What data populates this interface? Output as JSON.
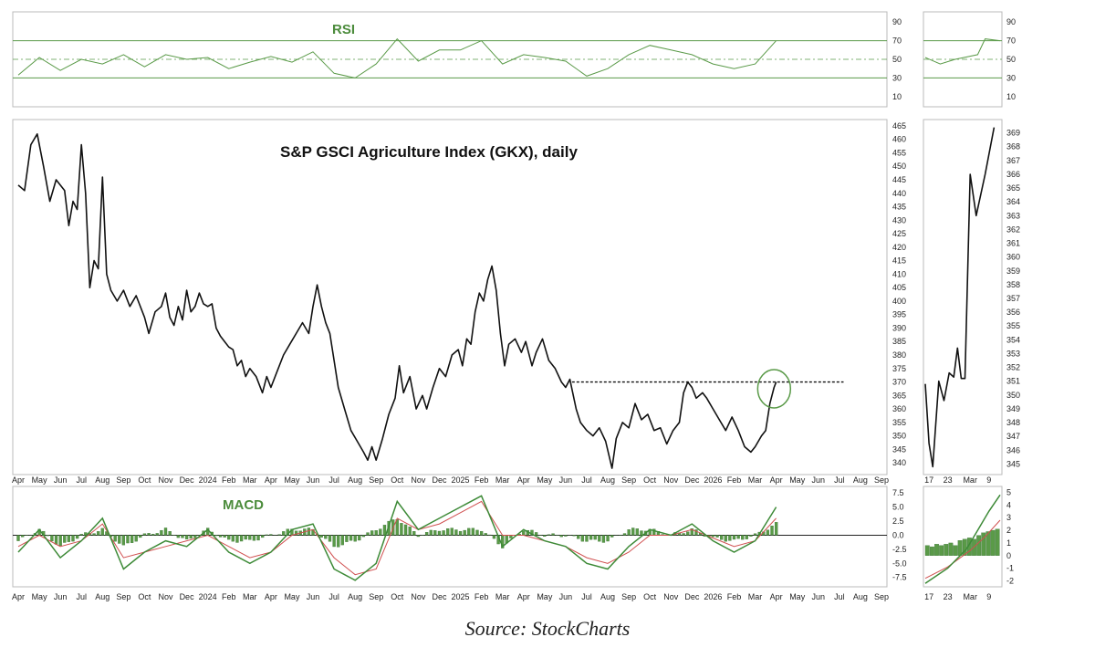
{
  "chart_data": {
    "type": "line",
    "title": "S&P GSCI Agriculture Index (GKX), daily",
    "source": "Source: StockCharts",
    "colors": {
      "price": "#111111",
      "rsi": "#5a9a48",
      "macd": "#3d8a37",
      "signal": "#d05050",
      "hist": "#5a9a48"
    },
    "main": {
      "x_labels": [
        "Apr",
        "May",
        "Jun",
        "Jul",
        "Aug",
        "Sep",
        "Oct",
        "Nov",
        "Dec",
        "2024",
        "Feb",
        "Mar",
        "Apr",
        "May",
        "Jun",
        "Jul",
        "Aug",
        "Sep",
        "Oct",
        "Nov",
        "Dec",
        "2025",
        "Feb",
        "Mar",
        "Apr",
        "May",
        "Jun",
        "Jul",
        "Aug",
        "Sep",
        "Oct",
        "Nov",
        "Dec",
        "2026",
        "Feb",
        "Mar",
        "Apr",
        "May",
        "Jun",
        "Jul",
        "Aug",
        "Sep"
      ],
      "y_ticks": [
        340,
        345,
        350,
        355,
        360,
        365,
        370,
        375,
        380,
        385,
        390,
        395,
        400,
        405,
        410,
        415,
        420,
        425,
        430,
        435,
        440,
        445,
        450,
        455,
        460,
        465
      ],
      "ylim": [
        336,
        467
      ],
      "points": [
        [
          0,
          443
        ],
        [
          0.3,
          441
        ],
        [
          0.6,
          458
        ],
        [
          0.9,
          462
        ],
        [
          1.2,
          450
        ],
        [
          1.5,
          437
        ],
        [
          1.8,
          445
        ],
        [
          2.2,
          441
        ],
        [
          2.4,
          428
        ],
        [
          2.6,
          437
        ],
        [
          2.8,
          434
        ],
        [
          3.0,
          458
        ],
        [
          3.2,
          440
        ],
        [
          3.4,
          405
        ],
        [
          3.6,
          415
        ],
        [
          3.8,
          412
        ],
        [
          4.0,
          446
        ],
        [
          4.2,
          410
        ],
        [
          4.4,
          404
        ],
        [
          4.7,
          400
        ],
        [
          5,
          404
        ],
        [
          5.3,
          398
        ],
        [
          5.6,
          402
        ],
        [
          6,
          394
        ],
        [
          6.2,
          388
        ],
        [
          6.5,
          396
        ],
        [
          6.8,
          398
        ],
        [
          7.0,
          403
        ],
        [
          7.2,
          394
        ],
        [
          7.4,
          391
        ],
        [
          7.6,
          398
        ],
        [
          7.8,
          393
        ],
        [
          8.0,
          404
        ],
        [
          8.2,
          396
        ],
        [
          8.4,
          398
        ],
        [
          8.6,
          403
        ],
        [
          8.8,
          399
        ],
        [
          9.0,
          398
        ],
        [
          9.2,
          399
        ],
        [
          9.4,
          390
        ],
        [
          9.6,
          387
        ],
        [
          9.8,
          385
        ],
        [
          10.0,
          383
        ],
        [
          10.2,
          382
        ],
        [
          10.4,
          376
        ],
        [
          10.6,
          378
        ],
        [
          10.8,
          372
        ],
        [
          11,
          375
        ],
        [
          11.3,
          372
        ],
        [
          11.6,
          366
        ],
        [
          11.8,
          372
        ],
        [
          12,
          368
        ],
        [
          12.3,
          374
        ],
        [
          12.6,
          380
        ],
        [
          12.9,
          384
        ],
        [
          13.2,
          388
        ],
        [
          13.5,
          392
        ],
        [
          13.8,
          388
        ],
        [
          14.0,
          398
        ],
        [
          14.2,
          406
        ],
        [
          14.4,
          398
        ],
        [
          14.6,
          392
        ],
        [
          14.8,
          388
        ],
        [
          15.0,
          378
        ],
        [
          15.2,
          368
        ],
        [
          15.5,
          360
        ],
        [
          15.8,
          352
        ],
        [
          16.1,
          348
        ],
        [
          16.4,
          344
        ],
        [
          16.6,
          341
        ],
        [
          16.8,
          346
        ],
        [
          17.0,
          341
        ],
        [
          17.3,
          349
        ],
        [
          17.6,
          358
        ],
        [
          17.9,
          364
        ],
        [
          18.1,
          376
        ],
        [
          18.3,
          366
        ],
        [
          18.6,
          372
        ],
        [
          18.9,
          360
        ],
        [
          19.2,
          365
        ],
        [
          19.4,
          360
        ],
        [
          19.7,
          368
        ],
        [
          20.0,
          375
        ],
        [
          20.3,
          372
        ],
        [
          20.6,
          380
        ],
        [
          20.9,
          382
        ],
        [
          21.1,
          376
        ],
        [
          21.3,
          386
        ],
        [
          21.5,
          384
        ],
        [
          21.7,
          396
        ],
        [
          21.9,
          403
        ],
        [
          22.1,
          400
        ],
        [
          22.3,
          408
        ],
        [
          22.5,
          413
        ],
        [
          22.7,
          404
        ],
        [
          22.9,
          388
        ],
        [
          23.1,
          376
        ],
        [
          23.3,
          384
        ],
        [
          23.6,
          386
        ],
        [
          23.9,
          381
        ],
        [
          24.1,
          385
        ],
        [
          24.4,
          376
        ],
        [
          24.6,
          381
        ],
        [
          24.9,
          386
        ],
        [
          25.2,
          378
        ],
        [
          25.5,
          375
        ],
        [
          25.8,
          370
        ],
        [
          26.0,
          368
        ],
        [
          26.2,
          371
        ],
        [
          26.5,
          360
        ],
        [
          26.7,
          355
        ],
        [
          27.0,
          352
        ],
        [
          27.3,
          350
        ],
        [
          27.6,
          353
        ],
        [
          27.9,
          348
        ],
        [
          28.2,
          338
        ],
        [
          28.4,
          349
        ],
        [
          28.7,
          355
        ],
        [
          29.0,
          353
        ],
        [
          29.3,
          362
        ],
        [
          29.6,
          356
        ],
        [
          29.9,
          358
        ],
        [
          30.2,
          352
        ],
        [
          30.5,
          353
        ],
        [
          30.8,
          347
        ],
        [
          31.1,
          352
        ],
        [
          31.4,
          355
        ],
        [
          31.6,
          366
        ],
        [
          31.8,
          370
        ],
        [
          32.0,
          368
        ],
        [
          32.2,
          364
        ],
        [
          32.5,
          366
        ],
        [
          32.7,
          364
        ],
        [
          33.0,
          360
        ],
        [
          33.3,
          356
        ],
        [
          33.6,
          352
        ],
        [
          33.9,
          357
        ],
        [
          34.2,
          352
        ],
        [
          34.5,
          346
        ],
        [
          34.8,
          344
        ],
        [
          35.0,
          346
        ],
        [
          35.3,
          350
        ],
        [
          35.5,
          352
        ],
        [
          35.7,
          362
        ],
        [
          35.9,
          368
        ],
        [
          36.0,
          370
        ]
      ],
      "resistance": {
        "value": 370,
        "x_start": 26.3,
        "x_end": 39.2
      },
      "highlight": {
        "x": 35.9,
        "y": 367.5
      }
    },
    "rsi": {
      "title": "RSI",
      "y_ticks": [
        10,
        30,
        50,
        70,
        90
      ],
      "ylim": [
        0,
        100
      ],
      "levels": [
        30,
        50,
        70
      ],
      "points": [
        [
          0,
          33
        ],
        [
          1,
          52
        ],
        [
          2,
          38
        ],
        [
          3,
          50
        ],
        [
          4,
          45
        ],
        [
          5,
          55
        ],
        [
          6,
          42
        ],
        [
          7,
          55
        ],
        [
          8,
          50
        ],
        [
          9,
          52
        ],
        [
          10,
          40
        ],
        [
          11,
          47
        ],
        [
          12,
          53
        ],
        [
          13,
          47
        ],
        [
          14,
          58
        ],
        [
          15,
          35
        ],
        [
          16,
          30
        ],
        [
          17,
          45
        ],
        [
          18,
          72
        ],
        [
          19,
          48
        ],
        [
          20,
          60
        ],
        [
          21,
          60
        ],
        [
          22,
          70
        ],
        [
          23,
          45
        ],
        [
          24,
          55
        ],
        [
          25,
          52
        ],
        [
          26,
          48
        ],
        [
          27,
          32
        ],
        [
          28,
          40
        ],
        [
          29,
          55
        ],
        [
          30,
          65
        ],
        [
          31,
          60
        ],
        [
          32,
          55
        ],
        [
          33,
          45
        ],
        [
          34,
          40
        ],
        [
          35,
          45
        ],
        [
          36,
          70
        ]
      ]
    },
    "rsi_zoom": {
      "y_ticks": [
        10,
        30,
        50,
        70,
        90
      ],
      "points": [
        [
          0,
          52
        ],
        [
          0.2,
          45
        ],
        [
          0.4,
          50
        ],
        [
          0.7,
          55
        ],
        [
          0.8,
          72
        ],
        [
          1.0,
          70
        ]
      ]
    },
    "main_zoom": {
      "x_labels": [
        "17",
        "23",
        "Mar",
        "9"
      ],
      "y_ticks": [
        345,
        346,
        347,
        348,
        349,
        350,
        351,
        352,
        353,
        354,
        355,
        356,
        357,
        358,
        359,
        360,
        361,
        362,
        363,
        364,
        365,
        366,
        367,
        368,
        369
      ],
      "ylim": [
        344.3,
        369.9
      ],
      "points": [
        [
          0,
          350.8
        ],
        [
          0.05,
          346.5
        ],
        [
          0.1,
          344.8
        ],
        [
          0.18,
          351
        ],
        [
          0.25,
          349.6
        ],
        [
          0.32,
          351.6
        ],
        [
          0.38,
          351.3
        ],
        [
          0.43,
          353.4
        ],
        [
          0.48,
          351.2
        ],
        [
          0.53,
          351.2
        ],
        [
          0.6,
          366
        ],
        [
          0.68,
          363
        ],
        [
          0.8,
          366
        ],
        [
          0.92,
          369.4
        ]
      ]
    },
    "macd": {
      "title": "MACD",
      "y_ticks": [
        -7.5,
        -5.0,
        -2.5,
        0.0,
        2.5,
        5.0,
        7.5
      ],
      "ylim": [
        -9,
        8.5
      ],
      "x_labels": [
        "Apr",
        "May",
        "Jun",
        "Jul",
        "Aug",
        "Sep",
        "Oct",
        "Nov",
        "Dec",
        "2024",
        "Feb",
        "Mar",
        "Apr",
        "May",
        "Jun",
        "Jul",
        "Aug",
        "Sep",
        "Oct",
        "Nov",
        "Dec",
        "2025",
        "Feb",
        "Mar",
        "Apr",
        "May",
        "Jun",
        "Jul",
        "Aug",
        "Sep",
        "Oct",
        "Nov",
        "Dec",
        "2026",
        "Feb",
        "Mar",
        "Apr",
        "May",
        "Jun",
        "Jul",
        "Aug",
        "Sep"
      ],
      "macd_points": [
        [
          0,
          -3
        ],
        [
          1,
          1
        ],
        [
          2,
          -4
        ],
        [
          3,
          -1
        ],
        [
          4,
          3
        ],
        [
          5,
          -6
        ],
        [
          6,
          -3
        ],
        [
          7,
          -1
        ],
        [
          8,
          -2
        ],
        [
          9,
          1
        ],
        [
          10,
          -3
        ],
        [
          11,
          -5
        ],
        [
          12,
          -3
        ],
        [
          13,
          1
        ],
        [
          14,
          2
        ],
        [
          15,
          -6
        ],
        [
          16,
          -8
        ],
        [
          17,
          -5
        ],
        [
          18,
          6
        ],
        [
          19,
          1
        ],
        [
          20,
          3
        ],
        [
          21,
          5
        ],
        [
          22,
          7
        ],
        [
          23,
          -2
        ],
        [
          24,
          1
        ],
        [
          25,
          -1
        ],
        [
          26,
          -2
        ],
        [
          27,
          -5
        ],
        [
          28,
          -6
        ],
        [
          29,
          -2
        ],
        [
          30,
          1
        ],
        [
          31,
          0
        ],
        [
          32,
          2
        ],
        [
          33,
          -1
        ],
        [
          34,
          -3
        ],
        [
          35,
          -1
        ],
        [
          36,
          5
        ]
      ],
      "signal_points": [
        [
          0,
          -2
        ],
        [
          1,
          0
        ],
        [
          2,
          -2
        ],
        [
          3,
          -1
        ],
        [
          4,
          2
        ],
        [
          5,
          -4
        ],
        [
          6,
          -3
        ],
        [
          7,
          -2
        ],
        [
          8,
          -1
        ],
        [
          9,
          0
        ],
        [
          10,
          -2
        ],
        [
          11,
          -4
        ],
        [
          12,
          -3
        ],
        [
          13,
          0
        ],
        [
          14,
          1
        ],
        [
          15,
          -4
        ],
        [
          16,
          -7
        ],
        [
          17,
          -6
        ],
        [
          18,
          3
        ],
        [
          19,
          1
        ],
        [
          20,
          2
        ],
        [
          21,
          4
        ],
        [
          22,
          6
        ],
        [
          23,
          0
        ],
        [
          24,
          0
        ],
        [
          25,
          -1
        ],
        [
          26,
          -2
        ],
        [
          27,
          -4
        ],
        [
          28,
          -5
        ],
        [
          29,
          -3
        ],
        [
          30,
          0
        ],
        [
          31,
          0
        ],
        [
          32,
          1
        ],
        [
          33,
          -0.5
        ],
        [
          34,
          -2
        ],
        [
          35,
          -1
        ],
        [
          36,
          3
        ]
      ],
      "hist_values": [
        -1,
        1,
        -2,
        0,
        1,
        -2,
        0,
        1,
        -1,
        1,
        -1,
        -1,
        0,
        1,
        1,
        -2,
        -1,
        1,
        3,
        0,
        1,
        1,
        1,
        -2,
        1,
        0,
        0,
        -1,
        -1,
        1,
        1,
        0,
        1,
        -0.5,
        -1,
        0,
        2
      ]
    },
    "macd_zoom": {
      "x_labels": [
        "17",
        "23",
        "Mar",
        "9"
      ],
      "y_ticks": [
        -2,
        -1,
        0,
        1,
        2,
        3,
        4,
        5
      ],
      "ylim": [
        -2.4,
        5.4
      ],
      "macd_points": [
        [
          0,
          -2.2
        ],
        [
          0.3,
          -1
        ],
        [
          0.55,
          0.5
        ],
        [
          0.7,
          2
        ],
        [
          0.85,
          3.5
        ],
        [
          1,
          4.8
        ]
      ],
      "signal_points": [
        [
          0,
          -1.8
        ],
        [
          0.3,
          -0.9
        ],
        [
          0.6,
          0.4
        ],
        [
          0.8,
          1.5
        ],
        [
          1,
          2.8
        ]
      ],
      "hist_values": [
        0.8,
        0.7,
        0.9,
        0.8,
        0.9,
        1.0,
        0.8,
        1.2,
        1.3,
        1.4,
        1.3,
        1.6,
        1.8,
        1.9,
        2.0,
        2.1
      ]
    }
  }
}
